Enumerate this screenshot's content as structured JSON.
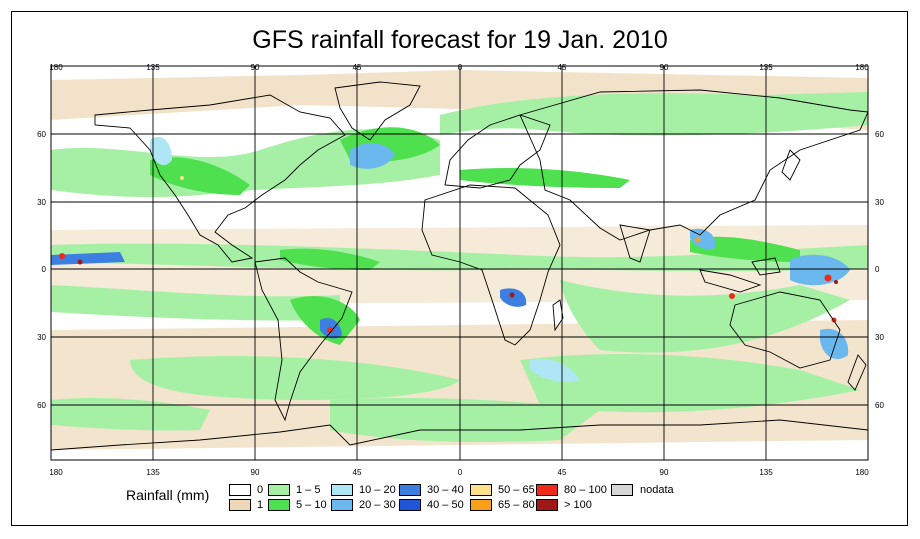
{
  "title": "GFS rainfall forecast for 19 Jan. 2010",
  "axes": {
    "top_lon_labels": [
      "180",
      "135",
      "90",
      "45",
      "0",
      "45",
      "90",
      "135",
      "180"
    ],
    "bottom_lon_labels": [
      "180",
      "135",
      "90",
      "45",
      "0",
      "45",
      "90",
      "135",
      "180"
    ],
    "left_lat_labels": [
      "60",
      "30",
      "0",
      "30",
      "60"
    ],
    "right_lat_labels": [
      "60",
      "30",
      "0",
      "30",
      "60"
    ]
  },
  "legend": {
    "title": "Rainfall (mm)",
    "items": [
      {
        "label": "0",
        "color": "#ffffff"
      },
      {
        "label": "1",
        "color": "#eed8b8"
      },
      {
        "label": "1 – 5",
        "color": "#a6f0a6"
      },
      {
        "label": "5 – 10",
        "color": "#4fe04f"
      },
      {
        "label": "10 – 20",
        "color": "#aee6f5"
      },
      {
        "label": "20 – 30",
        "color": "#6bb8ef"
      },
      {
        "label": "30 – 40",
        "color": "#3d7fe0"
      },
      {
        "label": "40 – 50",
        "color": "#1f55d6"
      },
      {
        "label": "50 – 65",
        "color": "#fde08a"
      },
      {
        "label": "65 – 80",
        "color": "#f9a019"
      },
      {
        "label": "80 – 100",
        "color": "#ee2a1a"
      },
      {
        "label": "> 100",
        "color": "#a01818"
      },
      {
        "label": "nodata",
        "color": "#d6d6d6"
      }
    ]
  }
}
